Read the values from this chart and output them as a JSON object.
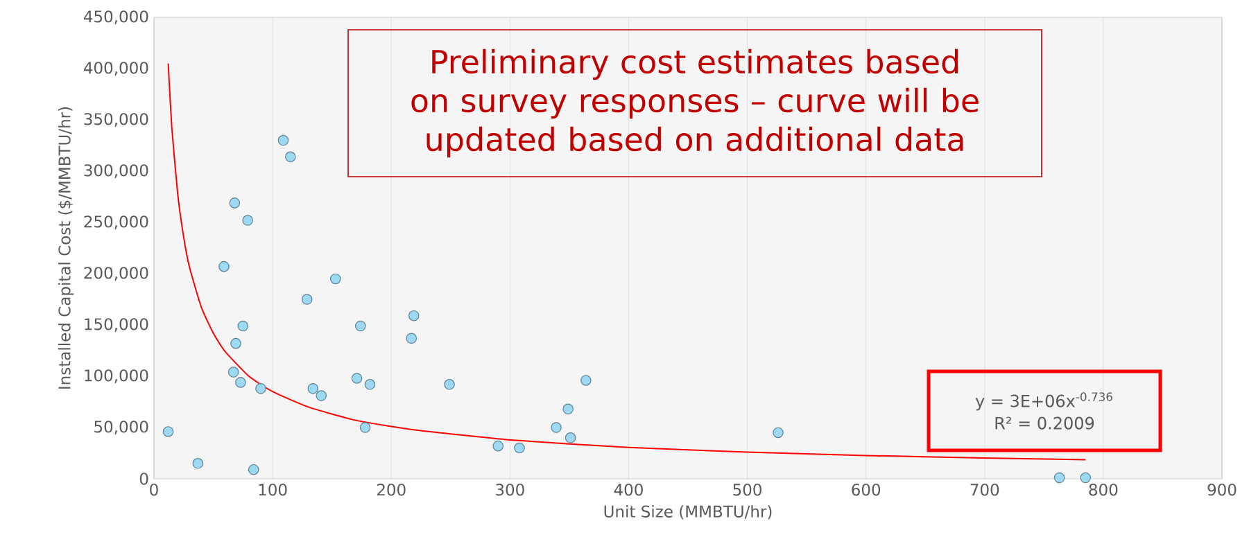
{
  "chart_data": {
    "type": "scatter",
    "xlabel": "Unit Size (MMBTU/hr)",
    "ylabel": "Installed Capital Cost ($/MMBTU/hr)",
    "xlim": [
      0,
      900
    ],
    "ylim": [
      0,
      450000
    ],
    "xticks": [
      0,
      100,
      200,
      300,
      400,
      500,
      600,
      700,
      800,
      900
    ],
    "yticks": [
      {
        "value": 0,
        "label": "0"
      },
      {
        "value": 50000,
        "label": "50,000"
      },
      {
        "value": 100000,
        "label": "100,000"
      },
      {
        "value": 150000,
        "label": "150,000"
      },
      {
        "value": 200000,
        "label": "200,000"
      },
      {
        "value": 250000,
        "label": "250,000"
      },
      {
        "value": 300000,
        "label": "300,000"
      },
      {
        "value": 350000,
        "label": "350,000"
      },
      {
        "value": 400000,
        "label": "400,000"
      },
      {
        "value": 450000,
        "label": "450,000"
      }
    ],
    "grid": "x",
    "marker": "circle",
    "series": [
      {
        "color": "#9dd9f3",
        "x": [
          12,
          37,
          59,
          67,
          68,
          69,
          73,
          75,
          79,
          84,
          90,
          109,
          115,
          129,
          134,
          141,
          153,
          171,
          174,
          178,
          182,
          217,
          219,
          249,
          290,
          308,
          339,
          349,
          351,
          364,
          526,
          763,
          785
        ],
        "values": [
          46000,
          15000,
          207000,
          104000,
          269000,
          132000,
          94000,
          149000,
          252000,
          9000,
          88000,
          330000,
          314000,
          175000,
          88000,
          81000,
          195000,
          98000,
          149000,
          50000,
          92000,
          137000,
          159000,
          92000,
          32000,
          30000,
          50000,
          68000,
          40000,
          96000,
          45000,
          1000,
          1000
        ]
      },
      {
        "type": "line",
        "color": "#ff0000",
        "marker": "none",
        "x": [
          12,
          15,
          20,
          25,
          30,
          40,
          50,
          60,
          80,
          100,
          130,
          170,
          220,
          300,
          400,
          500,
          600,
          700,
          785
        ],
        "values": [
          405000,
          343000,
          278000,
          236000,
          206000,
          167000,
          142000,
          124000,
          100000,
          85000,
          70000,
          57000,
          47600,
          37900,
          30600,
          26000,
          22700,
          20300,
          18600
        ]
      }
    ],
    "annotations": [
      "Preliminary cost estimates based on survey responses – curve will be updated based on additional data",
      "y = 3E+06x$^{-0.736}$",
      "R² = 0.2009"
    ]
  }
}
